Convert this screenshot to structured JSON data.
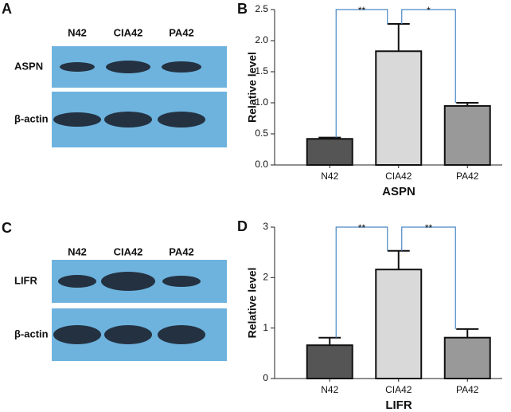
{
  "blots": [
    {
      "label": "A",
      "lanes": [
        "N42",
        "CIA42",
        "PA42"
      ],
      "rows": [
        "ASPN",
        "β-actin"
      ]
    },
    {
      "label": "C",
      "lanes": [
        "N42",
        "CIA42",
        "PA42"
      ],
      "rows": [
        "LIFR",
        "β-actin"
      ]
    }
  ],
  "chart_data": [
    {
      "type": "bar",
      "panel_label": "B",
      "ylabel": "Relative level",
      "xlabel": "ASPN",
      "categories": [
        "N42",
        "CIA42",
        "PA42"
      ],
      "values": [
        0.42,
        1.83,
        0.95
      ],
      "errors": [
        0.02,
        0.44,
        0.05
      ],
      "colors": [
        "#555555",
        "#d9d9d9",
        "#999999"
      ],
      "ylim": [
        0,
        2.5
      ],
      "yticks": [
        {
          "value": 0,
          "label": "0.0"
        },
        0.5,
        {
          "value": 1,
          "label": "1.0"
        },
        1.5,
        {
          "value": 2,
          "label": "2.0"
        },
        2.5
      ],
      "significance": [
        {
          "from": 0,
          "to": 1,
          "label": "**"
        },
        {
          "from": 1,
          "to": 2,
          "label": "*"
        }
      ]
    },
    {
      "type": "bar",
      "panel_label": "D",
      "ylabel": "Relative level",
      "xlabel": "LIFR",
      "categories": [
        "N42",
        "CIA42",
        "PA42"
      ],
      "values": [
        0.66,
        2.16,
        0.81
      ],
      "errors": [
        0.15,
        0.37,
        0.17
      ],
      "colors": [
        "#555555",
        "#d9d9d9",
        "#999999"
      ],
      "ylim": [
        0,
        3
      ],
      "yticks": [
        0,
        1,
        2,
        3
      ],
      "significance": [
        {
          "from": 0,
          "to": 1,
          "label": "**"
        },
        {
          "from": 1,
          "to": 2,
          "label": "**"
        }
      ]
    }
  ]
}
